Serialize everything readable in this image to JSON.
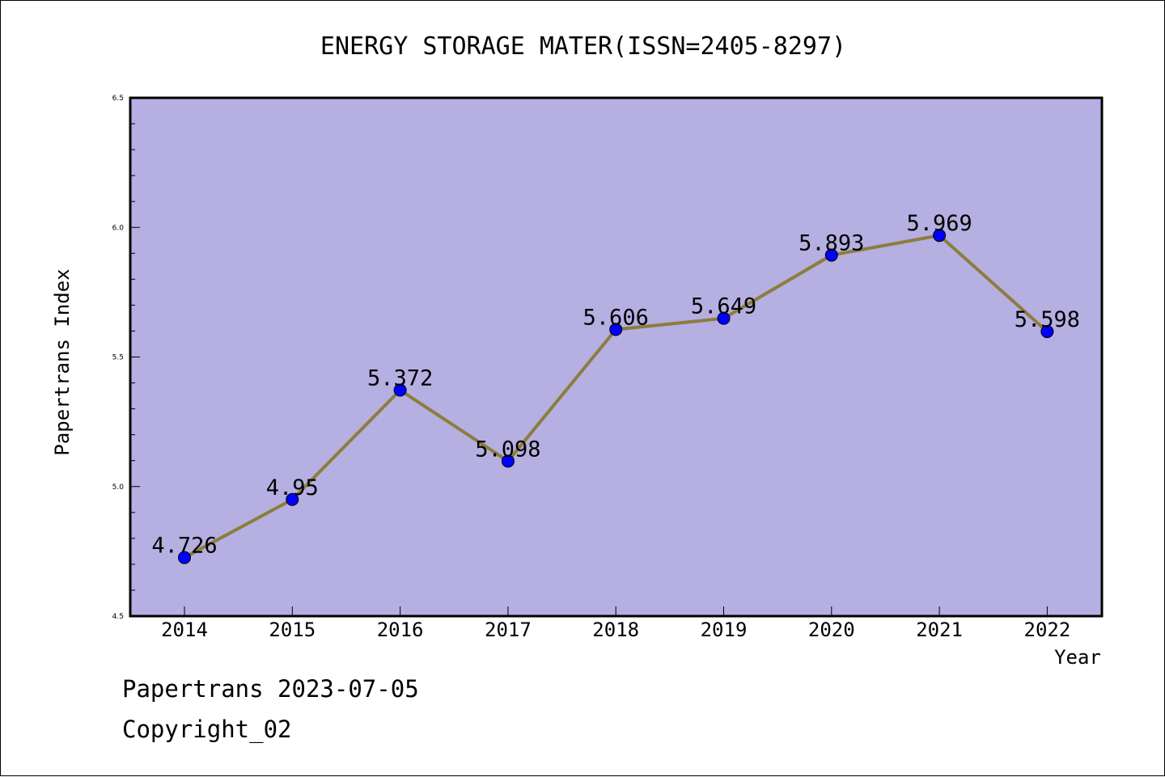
{
  "footer": {
    "line1": "Papertrans 2023-07-05",
    "line2": "Copyright_02"
  },
  "chart_data": {
    "type": "line",
    "title": "ENERGY STORAGE MATER(ISSN=2405-8297)",
    "xlabel": "Year",
    "ylabel": "Papertrans Index",
    "categories": [
      "2014",
      "2015",
      "2016",
      "2017",
      "2018",
      "2019",
      "2020",
      "2021",
      "2022"
    ],
    "values": [
      4.726,
      4.95,
      5.372,
      5.098,
      5.606,
      5.649,
      5.893,
      5.969,
      5.598
    ],
    "data_labels": [
      "4.726",
      "4.95",
      "5.372",
      "5.098",
      "5.606",
      "5.649",
      "5.893",
      "5.969",
      "5.598"
    ],
    "ylim": [
      4.5,
      6.5
    ],
    "yticks": [
      "4.5",
      "5.0",
      "5.5",
      "6.0",
      "6.5"
    ],
    "grid": false,
    "colors": {
      "plot_background": "#b5afe2",
      "line": "#8c7d3c",
      "marker": "#0000ff"
    }
  }
}
